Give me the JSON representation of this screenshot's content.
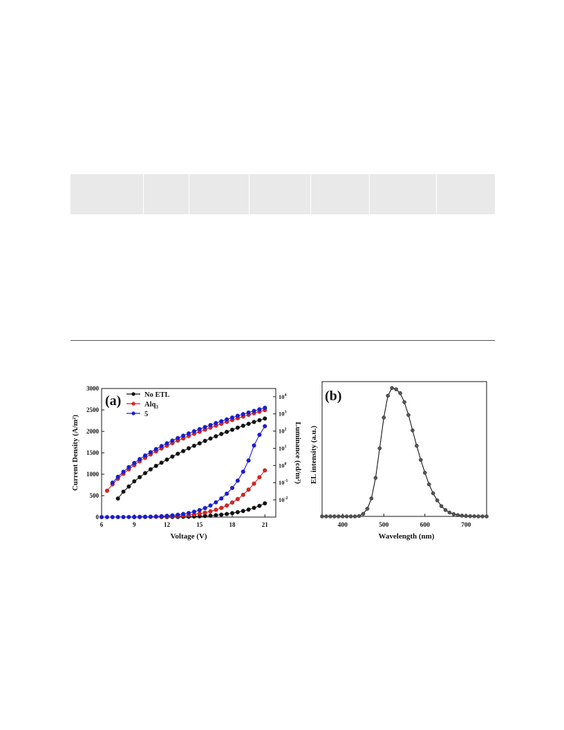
{
  "panel_a": {
    "label": "(a)",
    "legend": [
      {
        "name": "No ETL",
        "color": "#111111"
      },
      {
        "name": "Alq",
        "sub": "3",
        "color": "#e02020"
      },
      {
        "name": "5",
        "color": "#1a1ae0"
      }
    ],
    "xlabel": "Voltage (V)",
    "ylabel_left": "Current Density (A/m²)",
    "ylabel_right": "Luminance (cd/m²)"
  },
  "panel_b": {
    "label": "(b)",
    "xlabel": "Wavelength (nm)",
    "ylabel": "EL intensity (a.u.)"
  },
  "chart_data": [
    {
      "type": "line",
      "title": "(a)",
      "xlabel": "Voltage (V)",
      "ylabel": "Current Density (A/m²)",
      "y2label": "Luminance (cd/m²)",
      "xlim": [
        6,
        22
      ],
      "xticks": [
        6,
        9,
        12,
        15,
        18,
        21
      ],
      "ylim": [
        0,
        3000
      ],
      "yticks": [
        0,
        500,
        1000,
        1500,
        2000,
        2500,
        3000
      ],
      "y2_scale": "log",
      "y2lim": [
        0.001,
        30000
      ],
      "y2ticks": [
        {
          "base": "10",
          "exp": "4",
          "value": 10000
        },
        {
          "base": "10",
          "exp": "3",
          "value": 1000
        },
        {
          "base": "10",
          "exp": "2",
          "value": 100
        },
        {
          "base": "10",
          "exp": "1",
          "value": 10
        },
        {
          "base": "10",
          "exp": "0",
          "value": 1
        },
        {
          "base": "10",
          "exp": "-1",
          "value": 0.1
        },
        {
          "base": "10",
          "exp": "-2",
          "value": 0.01
        }
      ],
      "series": [
        {
          "name": "No ETL",
          "axis": "y2",
          "color": "#111111",
          "x": [
            7.5,
            8,
            8.5,
            9,
            9.5,
            10,
            10.5,
            11,
            11.5,
            12,
            12.5,
            13,
            13.5,
            14,
            14.5,
            15,
            15.5,
            16,
            16.5,
            17,
            17.5,
            18,
            18.5,
            19,
            19.5,
            20,
            20.5,
            21
          ],
          "y": [
            0.012,
            0.03,
            0.06,
            0.12,
            0.21,
            0.36,
            0.6,
            0.95,
            1.45,
            2.2,
            3.3,
            4.8,
            6.9,
            10,
            14,
            19.5,
            27,
            37,
            50,
            68,
            90,
            120,
            158,
            205,
            265,
            340,
            430,
            540
          ]
        },
        {
          "name": "Alq3",
          "axis": "y2",
          "color": "#e02020",
          "x": [
            6.5,
            7,
            7.5,
            8,
            8.5,
            9,
            9.5,
            10,
            10.5,
            11,
            11.5,
            12,
            12.5,
            13,
            13.5,
            14,
            14.5,
            15,
            15.5,
            16,
            16.5,
            17,
            17.5,
            18,
            18.5,
            19,
            19.5,
            20,
            20.5,
            21
          ],
          "y": [
            0.034,
            0.08,
            0.17,
            0.33,
            0.6,
            1.05,
            1.75,
            2.8,
            4.4,
            6.6,
            9.8,
            14.2,
            20,
            28,
            38,
            52,
            70,
            92,
            122,
            160,
            208,
            268,
            345,
            440,
            560,
            705,
            885,
            1100,
            1360,
            1670
          ]
        },
        {
          "name": "5",
          "axis": "y2",
          "color": "#1a1ae0",
          "x": [
            7,
            7.5,
            8,
            8.5,
            9,
            9.5,
            10,
            10.5,
            11,
            11.5,
            12,
            12.5,
            13,
            13.5,
            14,
            14.5,
            15,
            15.5,
            16,
            16.5,
            17,
            17.5,
            18,
            18.5,
            19,
            19.5,
            20,
            20.5,
            21
          ],
          "y": [
            0.1,
            0.22,
            0.43,
            0.8,
            1.4,
            2.35,
            3.8,
            5.9,
            9,
            13.4,
            19.5,
            28,
            39,
            54,
            73,
            98,
            130,
            172,
            225,
            292,
            375,
            480,
            610,
            770,
            965,
            1200,
            1490,
            1840,
            2260
          ]
        },
        {
          "name": "No ETL",
          "axis": "y",
          "color": "#111111",
          "x": [
            11.5,
            12,
            12.5,
            13,
            13.5,
            14,
            14.5,
            15,
            15.5,
            16,
            16.5,
            17,
            17.5,
            18,
            18.5,
            19,
            19.5,
            20,
            20.5,
            21
          ],
          "y": [
            0,
            1,
            2,
            4,
            6,
            9,
            13,
            18,
            25,
            33,
            43,
            56,
            72,
            92,
            115,
            142,
            175,
            215,
            262,
            320
          ]
        },
        {
          "name": "Alq3",
          "axis": "y",
          "color": "#e02020",
          "x": [
            9,
            9.5,
            10,
            10.5,
            11,
            11.5,
            12,
            12.5,
            13,
            13.5,
            14,
            14.5,
            15,
            15.5,
            16,
            16.5,
            17,
            17.5,
            18,
            18.5,
            19,
            19.5,
            20,
            20.5,
            21
          ],
          "y": [
            0,
            1,
            2,
            4,
            6,
            9,
            13,
            18,
            25,
            34,
            46,
            61,
            80,
            103,
            133,
            170,
            215,
            270,
            340,
            420,
            520,
            640,
            780,
            930,
            1090
          ]
        },
        {
          "name": "5",
          "axis": "y",
          "color": "#1a1ae0",
          "x": [
            6,
            6.5,
            7,
            7.5,
            8,
            8.5,
            9,
            9.5,
            10,
            10.5,
            11,
            11.5,
            12,
            12.5,
            13,
            13.5,
            14,
            14.5,
            15,
            15.5,
            16,
            16.5,
            17,
            17.5,
            18,
            18.5,
            19,
            19.5,
            20,
            20.5,
            21
          ],
          "y": [
            0,
            0,
            0,
            1,
            1,
            2,
            3,
            5,
            7,
            10,
            15,
            21,
            29,
            40,
            54,
            72,
            95,
            125,
            162,
            210,
            270,
            345,
            435,
            545,
            680,
            850,
            1060,
            1320,
            1670,
            1920,
            2120
          ]
        }
      ]
    },
    {
      "type": "line",
      "title": "(b)",
      "xlabel": "Wavelength (nm)",
      "ylabel": "EL intensity (a.u.)",
      "xlim": [
        350,
        750
      ],
      "xticks": [
        400,
        500,
        600,
        700
      ],
      "ylim": [
        0,
        1.05
      ],
      "series": [
        {
          "name": "",
          "color": "#111111",
          "x": [
            350,
            360,
            370,
            380,
            390,
            400,
            410,
            420,
            430,
            440,
            450,
            460,
            470,
            480,
            490,
            500,
            510,
            520,
            530,
            540,
            550,
            560,
            570,
            580,
            590,
            600,
            610,
            620,
            630,
            640,
            650,
            660,
            670,
            680,
            690,
            700,
            710,
            720,
            730,
            740,
            750
          ],
          "y": [
            0,
            0,
            0,
            0,
            0,
            0,
            0,
            0,
            0,
            0.003,
            0.02,
            0.06,
            0.14,
            0.3,
            0.53,
            0.77,
            0.94,
            1.0,
            0.99,
            0.96,
            0.89,
            0.79,
            0.67,
            0.55,
            0.44,
            0.34,
            0.25,
            0.18,
            0.125,
            0.08,
            0.05,
            0.03,
            0.018,
            0.01,
            0.006,
            0.003,
            0.002,
            0.001,
            0,
            0,
            0
          ]
        }
      ]
    }
  ]
}
